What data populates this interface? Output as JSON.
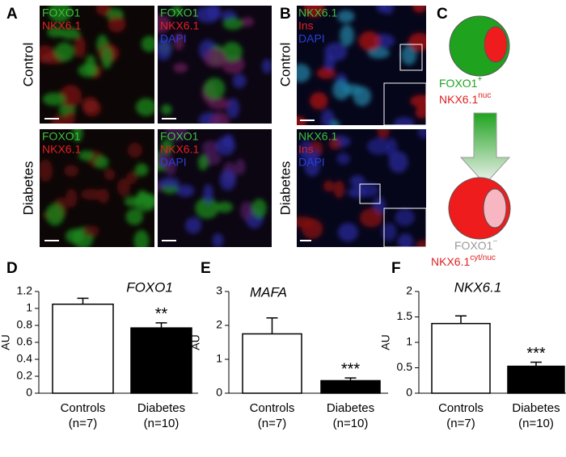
{
  "panel_labels": [
    "A",
    "B",
    "C",
    "D",
    "E",
    "F"
  ],
  "microscopy": {
    "rows": [
      "Control",
      "Diabetes"
    ],
    "panel_a_labels": [
      "FOXO1",
      "NKX6.1",
      "DAPI"
    ],
    "panel_b_labels": [
      "NKX6.1",
      "Ins",
      "DAPI"
    ]
  },
  "schematic": {
    "state1": [
      {
        "text": "FOXO1",
        "sup": "+"
      },
      {
        "text": "NKX6.1",
        "sup": "nuc"
      }
    ],
    "state2": [
      {
        "text": "FOXO1",
        "sup": "−"
      },
      {
        "text": "NKX6.1",
        "sup": "cyt/nuc"
      }
    ]
  },
  "chart_data": [
    {
      "type": "bar",
      "title": "FOXO1",
      "y_label": "AU",
      "categories": [
        "Controls",
        "Diabetes"
      ],
      "n_labels": [
        "(n=7)",
        "(n=10)"
      ],
      "values": [
        1.05,
        0.77
      ],
      "errors": [
        0.07,
        0.06
      ],
      "colors": [
        "#ffffff",
        "#000000"
      ],
      "significance": {
        "index": 1,
        "label": "**"
      },
      "ylim": [
        0,
        1.2
      ],
      "yticks": [
        0,
        0.2,
        0.4,
        0.6,
        0.8,
        1,
        1.2
      ]
    },
    {
      "type": "bar",
      "title": "MAFA",
      "y_label": "AU",
      "categories": [
        "Controls",
        "Diabetes"
      ],
      "n_labels": [
        "(n=7)",
        "(n=10)"
      ],
      "values": [
        1.75,
        0.37
      ],
      "errors": [
        0.47,
        0.08
      ],
      "colors": [
        "#ffffff",
        "#000000"
      ],
      "significance": {
        "index": 1,
        "label": "***"
      },
      "ylim": [
        0,
        3
      ],
      "yticks": [
        0,
        1,
        2,
        3
      ]
    },
    {
      "type": "bar",
      "title": "NKX6.1",
      "y_label": "AU",
      "categories": [
        "Controls",
        "Diabetes"
      ],
      "n_labels": [
        "(n=7)",
        "(n=10)"
      ],
      "values": [
        1.37,
        0.53
      ],
      "errors": [
        0.15,
        0.08
      ],
      "colors": [
        "#ffffff",
        "#000000"
      ],
      "significance": {
        "index": 1,
        "label": "***"
      },
      "ylim": [
        0,
        2
      ],
      "yticks": [
        0,
        0.5,
        1,
        1.5,
        2
      ]
    }
  ]
}
